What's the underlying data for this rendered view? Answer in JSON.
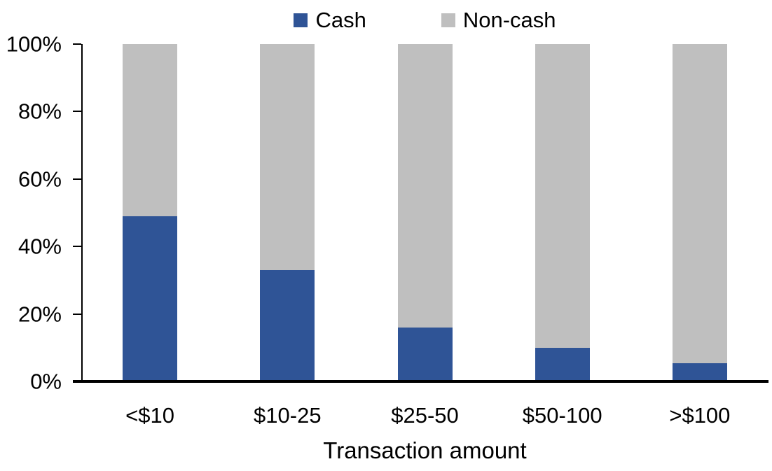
{
  "chart_data": {
    "type": "bar",
    "variant": "stacked-100-percent",
    "title": "",
    "xlabel": "Transaction amount",
    "ylabel": "",
    "categories": [
      "<$10",
      "$10-25",
      "$25-50",
      "$50-100",
      ">$100"
    ],
    "series": [
      {
        "name": "Cash",
        "color": "#2F5496",
        "values": [
          49,
          33,
          16,
          10,
          5.5
        ]
      },
      {
        "name": "Non-cash",
        "color": "#BFBFBF",
        "values": [
          51,
          67,
          84,
          90,
          94.5
        ]
      }
    ],
    "ylim": [
      0,
      100
    ],
    "ytick_labels": [
      "0%",
      "20%",
      "40%",
      "60%",
      "80%",
      "100%"
    ],
    "ytick_values": [
      0,
      20,
      40,
      60,
      80,
      100
    ],
    "grid": false,
    "legend_position": "top-center",
    "axis_color": "#000000",
    "text_color": "#000000",
    "background_color": "#FFFFFF"
  }
}
